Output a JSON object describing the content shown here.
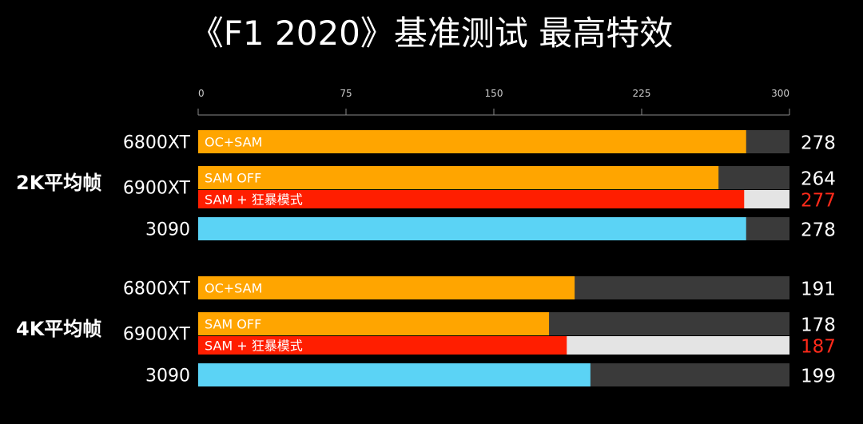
{
  "title": "《F1 2020》基准测试 最高特效",
  "chart_data": {
    "type": "bar",
    "orientation": "horizontal",
    "title": "《F1 2020》基准测试 最高特效",
    "xlim": [
      0,
      300
    ],
    "xticks": [
      "0",
      "75",
      "150",
      "225",
      "300"
    ],
    "groups": [
      {
        "label": "2K平均帧",
        "rows": [
          {
            "gpu": "6800XT",
            "bars": [
              {
                "label": "OC+SAM",
                "value": 278,
                "value_text": "278",
                "color": "#FFA500",
                "track": "#3a3a3a",
                "value_color": "#ffffff"
              }
            ]
          },
          {
            "gpu": "6900XT",
            "bars": [
              {
                "label": "SAM OFF",
                "value": 264,
                "value_text": "264",
                "color": "#FFA500",
                "track": "#3a3a3a",
                "value_color": "#ffffff"
              },
              {
                "label": "SAM + 狂暴模式",
                "value": 277,
                "value_text": "277",
                "color": "#FF1E00",
                "track": "#e4e4e4",
                "value_color": "#FF2A1A"
              }
            ]
          },
          {
            "gpu": "3090",
            "bars": [
              {
                "label": "",
                "value": 278,
                "value_text": "278",
                "color": "#5BD3F5",
                "track": "#3a3a3a",
                "value_color": "#ffffff"
              }
            ]
          }
        ]
      },
      {
        "label": "4K平均帧",
        "rows": [
          {
            "gpu": "6800XT",
            "bars": [
              {
                "label": "OC+SAM",
                "value": 191,
                "value_text": "191",
                "color": "#FFA500",
                "track": "#3a3a3a",
                "value_color": "#ffffff"
              }
            ]
          },
          {
            "gpu": "6900XT",
            "bars": [
              {
                "label": "SAM OFF",
                "value": 178,
                "value_text": "178",
                "color": "#FFA500",
                "track": "#3a3a3a",
                "value_color": "#ffffff"
              },
              {
                "label": "SAM + 狂暴模式",
                "value": 187,
                "value_text": "187",
                "color": "#FF1E00",
                "track": "#e4e4e4",
                "value_color": "#FF2A1A"
              }
            ]
          },
          {
            "gpu": "3090",
            "bars": [
              {
                "label": "",
                "value": 199,
                "value_text": "199",
                "color": "#5BD3F5",
                "track": "#3a3a3a",
                "value_color": "#ffffff"
              }
            ]
          }
        ]
      }
    ]
  }
}
